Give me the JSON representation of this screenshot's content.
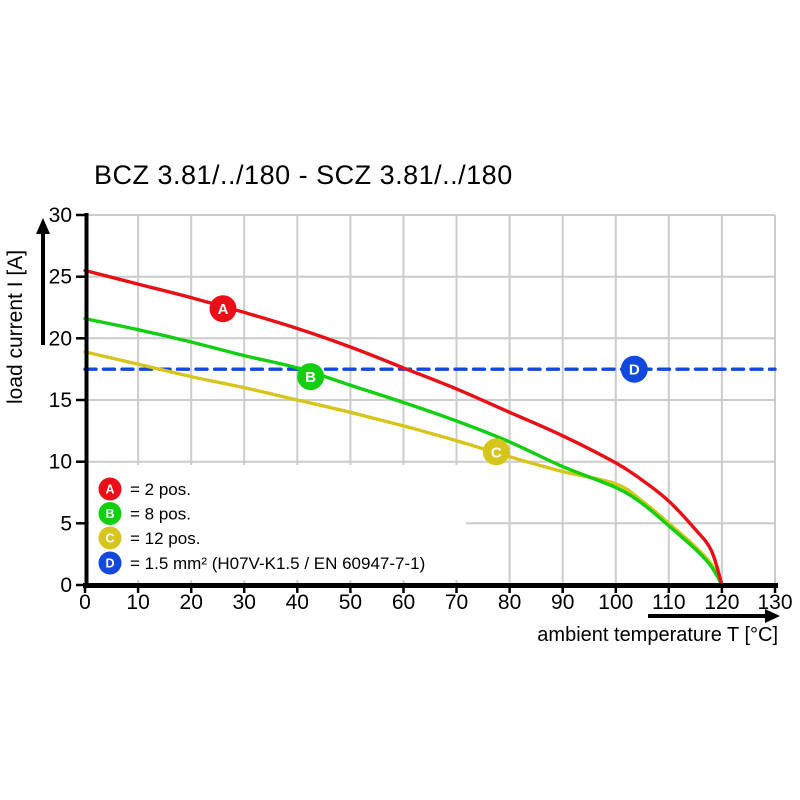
{
  "title": "BCZ 3.81/../180 - SCZ 3.81/../180",
  "chart_data": {
    "type": "line",
    "title": "BCZ 3.81/../180 - SCZ 3.81/../180",
    "xlabel": "ambient temperature T [°C]",
    "ylabel": "load current I [A]",
    "xlim": [
      0,
      130
    ],
    "ylim": [
      0,
      30
    ],
    "xticks": [
      0,
      10,
      20,
      30,
      40,
      50,
      60,
      70,
      80,
      90,
      100,
      110,
      120,
      130
    ],
    "yticks": [
      0,
      5,
      10,
      15,
      20,
      25,
      30
    ],
    "grid": true,
    "grid_color": "#cccccc",
    "axis_color": "#000000",
    "legend_position": "inside-bottom-left",
    "series": [
      {
        "key": "D",
        "name": "1.5 mm² (H07V-K1.5 / EN 60947-7-1)",
        "color": "#1148dd",
        "style": "dashed",
        "points": [
          [
            0,
            17.5
          ],
          [
            130,
            17.5
          ]
        ]
      },
      {
        "key": "C",
        "name": "12 pos.",
        "color": "#d6c51d",
        "style": "solid",
        "points": [
          [
            0,
            18.9
          ],
          [
            10,
            17.9
          ],
          [
            20,
            16.9
          ],
          [
            30,
            16.0
          ],
          [
            40,
            15.0
          ],
          [
            50,
            14.0
          ],
          [
            60,
            12.9
          ],
          [
            70,
            11.7
          ],
          [
            80,
            10.4
          ],
          [
            90,
            9.2
          ],
          [
            100,
            8.2
          ],
          [
            105,
            6.8
          ],
          [
            110,
            5.0
          ],
          [
            115,
            3.1
          ],
          [
            118,
            1.7
          ],
          [
            120,
            0
          ]
        ]
      },
      {
        "key": "B",
        "name": "8 pos.",
        "color": "#12cf12",
        "style": "solid",
        "points": [
          [
            0,
            21.6
          ],
          [
            10,
            20.7
          ],
          [
            20,
            19.7
          ],
          [
            30,
            18.6
          ],
          [
            40,
            17.6
          ],
          [
            50,
            16.2
          ],
          [
            60,
            14.8
          ],
          [
            70,
            13.3
          ],
          [
            80,
            11.6
          ],
          [
            90,
            9.6
          ],
          [
            100,
            7.9
          ],
          [
            105,
            6.6
          ],
          [
            110,
            4.8
          ],
          [
            115,
            2.9
          ],
          [
            118,
            1.5
          ],
          [
            120,
            0
          ]
        ]
      },
      {
        "key": "A",
        "name": "2 pos.",
        "color": "#e81016",
        "style": "solid",
        "points": [
          [
            0,
            25.5
          ],
          [
            10,
            24.4
          ],
          [
            20,
            23.3
          ],
          [
            30,
            22.1
          ],
          [
            40,
            20.8
          ],
          [
            50,
            19.3
          ],
          [
            60,
            17.6
          ],
          [
            70,
            15.9
          ],
          [
            80,
            14.0
          ],
          [
            90,
            12.1
          ],
          [
            100,
            9.9
          ],
          [
            105,
            8.5
          ],
          [
            110,
            6.8
          ],
          [
            115,
            4.5
          ],
          [
            118,
            2.8
          ],
          [
            120,
            0
          ]
        ]
      }
    ],
    "curve_markers": [
      {
        "key": "A",
        "x": 26,
        "y": 22.4
      },
      {
        "key": "B",
        "x": 42.5,
        "y": 16.9
      },
      {
        "key": "C",
        "x": 77.5,
        "y": 10.8
      },
      {
        "key": "D",
        "x": 103.5,
        "y": 17.5
      }
    ],
    "legend": [
      {
        "key": "A",
        "text": "= 2 pos."
      },
      {
        "key": "B",
        "text": "= 8 pos."
      },
      {
        "key": "C",
        "text": "= 12 pos."
      },
      {
        "key": "D",
        "text": "= 1.5 mm² (H07V-K1.5 / EN 60947-7-1)"
      }
    ]
  }
}
